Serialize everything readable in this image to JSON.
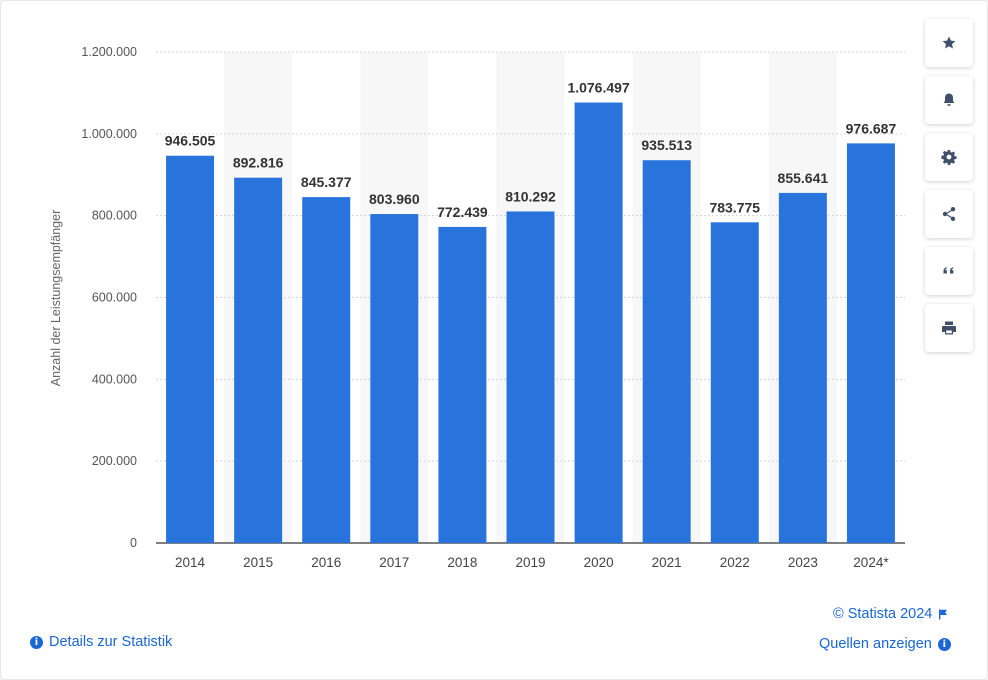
{
  "chart_data": {
    "type": "bar",
    "categories": [
      "2014",
      "2015",
      "2016",
      "2017",
      "2018",
      "2019",
      "2020",
      "2021",
      "2022",
      "2023",
      "2024*"
    ],
    "values": [
      946505,
      892816,
      845377,
      803960,
      772439,
      810292,
      1076497,
      935513,
      783775,
      855641,
      976687
    ],
    "value_labels": [
      "946.505",
      "892.816",
      "845.377",
      "803.960",
      "772.439",
      "810.292",
      "1.076.497",
      "935.513",
      "783.775",
      "855.641",
      "976.687"
    ],
    "ylabel": "Anzahl der Leistungsempfänger",
    "xlabel": "",
    "ylim": [
      0,
      1200000
    ],
    "yticks": [
      0,
      200000,
      400000,
      600000,
      800000,
      1000000,
      1200000
    ],
    "ytick_labels": [
      "0",
      "200.000",
      "400.000",
      "600.000",
      "800.000",
      "1.000.000",
      "1.200.000"
    ],
    "grid": true,
    "bar_color": "#2874dc"
  },
  "copyright": "© Statista 2024",
  "links": {
    "details": "Details zur Statistik",
    "sources": "Quellen anzeigen"
  },
  "toolbar": [
    "star-icon",
    "bell-icon",
    "gear-icon",
    "share-icon",
    "quote-icon",
    "print-icon"
  ]
}
